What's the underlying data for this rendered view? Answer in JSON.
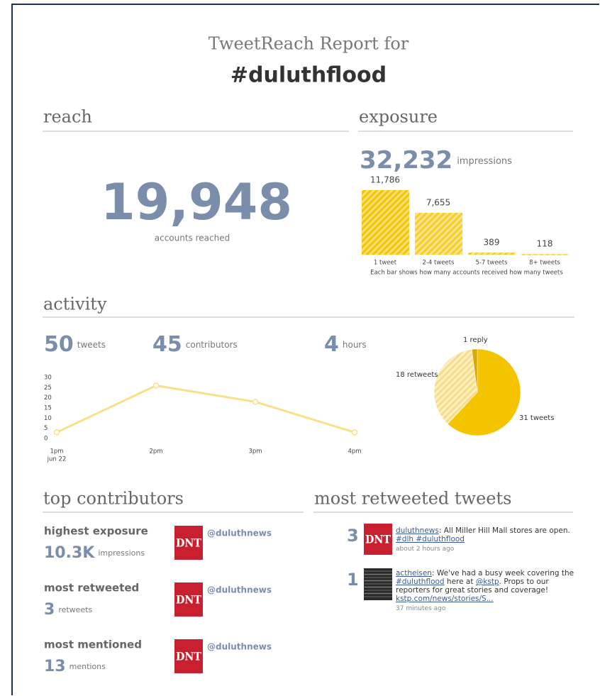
{
  "header": {
    "title": "TweetReach Report for",
    "hashtag": "#duluthflood"
  },
  "reach": {
    "heading": "reach",
    "value": "19,948",
    "label": "accounts reached"
  },
  "exposure": {
    "heading": "exposure",
    "value": "32,232",
    "unit": "impressions",
    "chart": {
      "type": "bar",
      "categories": [
        "1 tweet",
        "2-4 tweets",
        "5-7 tweets",
        "8+ tweets"
      ],
      "values": [
        11786,
        7655,
        389,
        118
      ],
      "value_labels": [
        "11,786",
        "7,655",
        "389",
        "118"
      ],
      "color": "#f5c400",
      "caption": "Each bar shows how many accounts received how many tweets"
    }
  },
  "activity": {
    "heading": "activity",
    "stats": [
      {
        "value": 50,
        "unit": "tweets"
      },
      {
        "value": 45,
        "unit": "contributors"
      },
      {
        "value": 4,
        "unit": "hours"
      }
    ],
    "line_chart": {
      "type": "line",
      "categories": [
        "1pm",
        "2pm",
        "3pm",
        "4pm"
      ],
      "date_label": "jun 22",
      "values": [
        3,
        26,
        18,
        3
      ],
      "color": "#f8e08a",
      "ylim": [
        0,
        30
      ],
      "yticks": [
        0,
        5,
        10,
        15,
        20,
        25,
        30
      ]
    },
    "pie_chart": {
      "type": "pie",
      "categories": [
        "tweets",
        "retweets",
        "reply"
      ],
      "values": [
        31,
        18,
        1
      ],
      "value_labels": [
        "31 tweets",
        "18 retweets",
        "1 reply"
      ],
      "colors": [
        "#f5c400",
        "#f4dc8a",
        "#d9a900"
      ]
    }
  },
  "top_contributors": {
    "heading": "top contributors",
    "items": [
      {
        "title": "highest exposure",
        "value": "10.3K",
        "unit": "impressions",
        "logo": "DNT",
        "handle": "@duluthnews"
      },
      {
        "title": "most retweeted",
        "value": "3",
        "unit": "retweets",
        "logo": "DNT",
        "handle": "@duluthnews"
      },
      {
        "title": "most mentioned",
        "value": "13",
        "unit": "mentions",
        "logo": "DNT",
        "handle": "@duluthnews"
      }
    ]
  },
  "most_retweeted": {
    "heading": "most retweeted tweets",
    "tweets": [
      {
        "count": 3,
        "logo": "DNT",
        "parts": [
          "duluthnews",
          ": All Miller Hill Mall stores are open. ",
          "#dlh #duluthflood"
        ],
        "time": "about 2 hours ago"
      },
      {
        "count": 1,
        "parts": [
          "actheisen",
          ": We've had a busy week covering the ",
          "#duluthflood",
          " here at ",
          "@kstp",
          ". Props to our reporters for great stories and coverage! ",
          "kstp.com/news/stories/S..."
        ],
        "time": "37 minutes ago"
      }
    ]
  }
}
